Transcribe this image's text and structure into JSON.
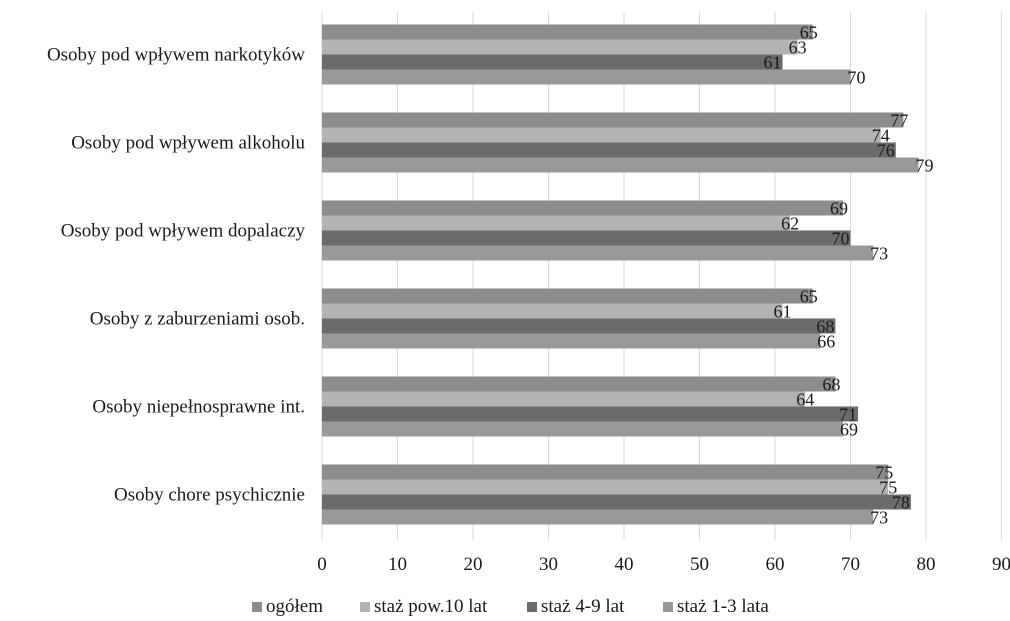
{
  "chart_data": {
    "type": "bar",
    "orientation": "horizontal",
    "categories": [
      "Osoby pod wpływem narkotyków",
      "Osoby pod wpływem alkoholu",
      "Osoby pod wpływem dopalaczy",
      "Osoby z zaburzeniami osob.",
      "Osoby niepełnosprawne int.",
      "Osoby chore psychicznie"
    ],
    "series": [
      {
        "name": "ogółem",
        "values": [
          65,
          77,
          69,
          65,
          68,
          75
        ],
        "color": "#8c8c8c"
      },
      {
        "name": "staż pow.10 lat",
        "values": [
          63,
          74,
          62,
          61,
          64,
          75
        ],
        "color": "#b3b3b3"
      },
      {
        "name": "staż 4-9 lat",
        "values": [
          61,
          76,
          70,
          68,
          71,
          78
        ],
        "color": "#6b6b6b"
      },
      {
        "name": "staż 1-3 lata",
        "values": [
          70,
          79,
          73,
          66,
          69,
          73
        ],
        "color": "#999999"
      }
    ],
    "xlim": [
      0,
      90
    ],
    "xticks": [
      "0",
      "10",
      "20",
      "30",
      "40",
      "50",
      "60",
      "70",
      "80",
      "90"
    ],
    "title": "",
    "xlabel": "",
    "ylabel": "",
    "grid": "vertical",
    "legend": "bottom"
  }
}
